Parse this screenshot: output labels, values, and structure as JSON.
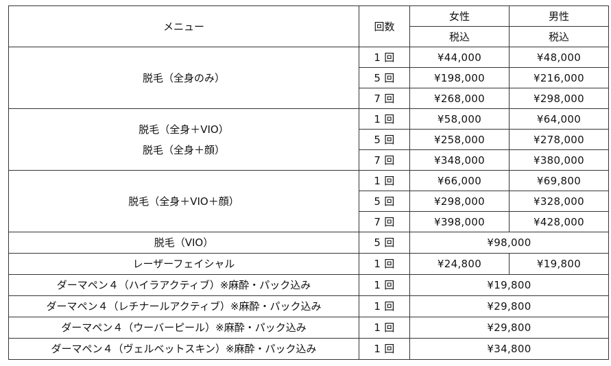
{
  "header": {
    "menu": "メニュー",
    "count": "回数",
    "female": "女性",
    "male": "男性",
    "female_tax": "税込",
    "male_tax": "税込"
  },
  "groups": [
    {
      "menu_lines": [
        "脱毛（全身のみ）"
      ],
      "rows": [
        {
          "count": "1 回",
          "female": "¥44,000",
          "male": "¥48,000"
        },
        {
          "count": "5 回",
          "female": "¥198,000",
          "male": "¥216,000"
        },
        {
          "count": "7 回",
          "female": "¥268,000",
          "male": "¥298,000"
        }
      ]
    },
    {
      "menu_lines": [
        "脱毛（全身＋VIO）",
        "脱毛（全身＋顔）"
      ],
      "rows": [
        {
          "count": "1 回",
          "female": "¥58,000",
          "male": "¥64,000"
        },
        {
          "count": "5 回",
          "female": "¥258,000",
          "male": "¥278,000"
        },
        {
          "count": "7 回",
          "female": "¥348,000",
          "male": "¥380,000"
        }
      ]
    },
    {
      "menu_lines": [
        "脱毛（全身＋VIO＋顔）"
      ],
      "rows": [
        {
          "count": "1 回",
          "female": "¥66,000",
          "male": "¥69,800"
        },
        {
          "count": "5 回",
          "female": "¥298,000",
          "male": "¥328,000"
        },
        {
          "count": "7 回",
          "female": "¥398,000",
          "male": "¥428,000"
        }
      ]
    },
    {
      "menu_lines": [
        "脱毛（VIO）"
      ],
      "rows": [
        {
          "count": "5 回",
          "price": "¥98,000"
        }
      ]
    },
    {
      "menu_lines": [
        "レーザーフェイシャル"
      ],
      "rows": [
        {
          "count": "1 回",
          "female": "¥24,800",
          "male": "¥19,800"
        }
      ]
    },
    {
      "menu_lines": [
        "ダーマペン４（ハイラアクティブ）※麻酔・パック込み"
      ],
      "rows": [
        {
          "count": "1 回",
          "price": "¥19,800"
        }
      ]
    },
    {
      "menu_lines": [
        "ダーマペン４（レチナールアクティブ）※麻酔・パック込み"
      ],
      "rows": [
        {
          "count": "1 回",
          "price": "¥29,800"
        }
      ]
    },
    {
      "menu_lines": [
        "ダーマペン４（ウーバーピール）※麻酔・パック込み"
      ],
      "rows": [
        {
          "count": "1 回",
          "price": "¥29,800"
        }
      ]
    },
    {
      "menu_lines": [
        "ダーマペン４（ヴェルベットスキン）※麻酔・パック込み"
      ],
      "rows": [
        {
          "count": "1 回",
          "price": "¥34,800"
        }
      ]
    }
  ]
}
